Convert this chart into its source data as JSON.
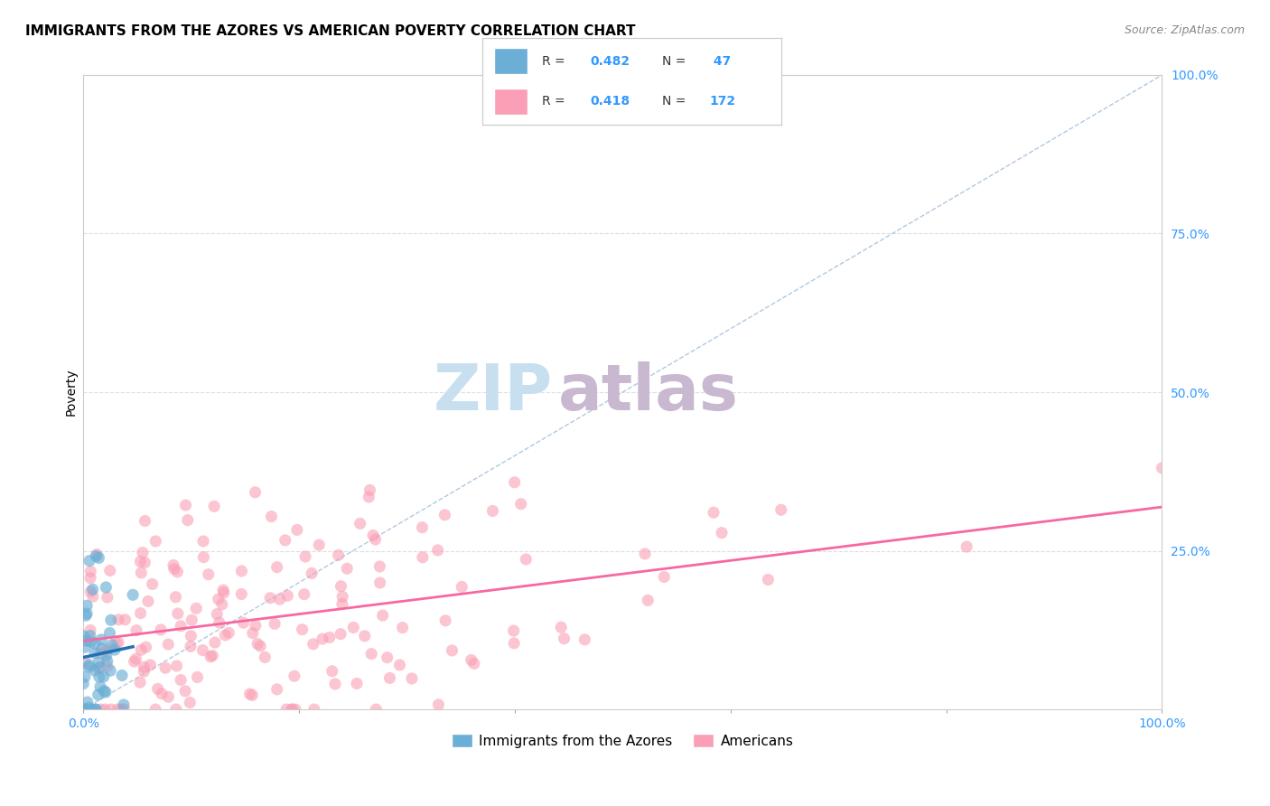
{
  "title": "IMMIGRANTS FROM THE AZORES VS AMERICAN POVERTY CORRELATION CHART",
  "source": "Source: ZipAtlas.com",
  "ylabel": "Poverty",
  "legend_label_blue": "Immigrants from the Azores",
  "legend_label_pink": "Americans",
  "blue_color": "#6baed6",
  "pink_color": "#fa9fb5",
  "trend_blue_color": "#2171b5",
  "trend_pink_color": "#f768a1",
  "diagonal_color": "#b0c8e0",
  "watermark_zip": "ZIP",
  "watermark_atlas": "atlas",
  "watermark_color_zip": "#c8dff0",
  "watermark_color_atlas": "#c8b8d0",
  "title_fontsize": 11,
  "source_fontsize": 9,
  "axis_label_fontsize": 10,
  "tick_fontsize": 10,
  "legend_fontsize": 10
}
